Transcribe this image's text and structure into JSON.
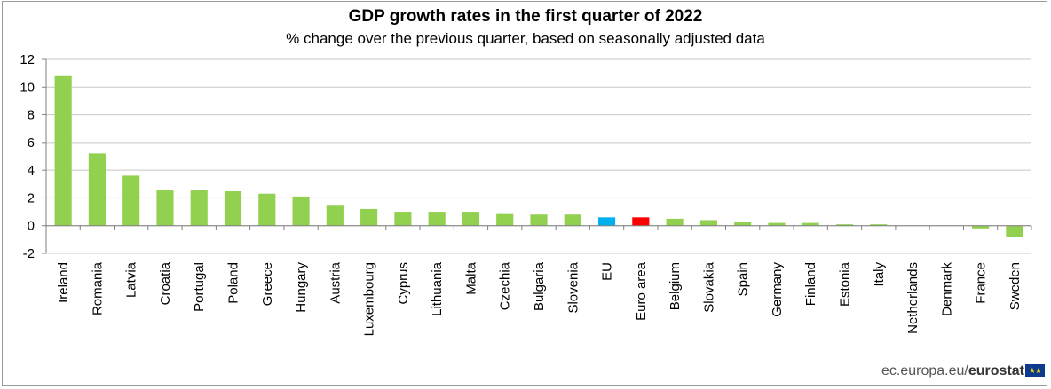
{
  "title": "GDP growth rates in the first quarter of  2022",
  "subtitle": "% change over the previous  quarter, based on seasonally adjusted data",
  "source": {
    "domain": "ec.europa.eu/",
    "brand": "eurostat",
    "flag_icon": "eu-flag-icon"
  },
  "colors": {
    "country": "#92d050",
    "eu": "#00b0f0",
    "euro_area": "#ff0000",
    "grid": "#c8c8c8",
    "axis": "#808080"
  },
  "chart_data": {
    "type": "bar",
    "categories": [
      "Ireland",
      "Romania",
      "Latvia",
      "Croatia",
      "Portugal",
      "Poland",
      "Greece",
      "Hungary",
      "Austria",
      "Luxembourg",
      "Cyprus",
      "Lithuania",
      "Malta",
      "Czechia",
      "Bulgaria",
      "Slovenia",
      "EU",
      "Euro area",
      "Belgium",
      "Slovakia",
      "Spain",
      "Germany",
      "Finland",
      "Estonia",
      "Italy",
      "Netherlands",
      "Denmark",
      "France",
      "Sweden"
    ],
    "values": [
      10.8,
      5.2,
      3.6,
      2.6,
      2.6,
      2.5,
      2.3,
      2.1,
      1.5,
      1.2,
      1.0,
      1.0,
      1.0,
      0.9,
      0.8,
      0.8,
      0.6,
      0.6,
      0.5,
      0.4,
      0.3,
      0.2,
      0.2,
      0.1,
      0.1,
      0.0,
      0.0,
      -0.2,
      -0.8
    ],
    "highlight": {
      "EU": "eu",
      "Euro area": "euro_area"
    },
    "title": "GDP growth rates in the first quarter of  2022",
    "subtitle": "% change over the previous  quarter, based on seasonally adjusted data",
    "xlabel": "",
    "ylabel": "",
    "ylim": [
      -2,
      12
    ],
    "yticks": [
      -2,
      0,
      2,
      4,
      6,
      8,
      10,
      12
    ],
    "grid": true
  }
}
